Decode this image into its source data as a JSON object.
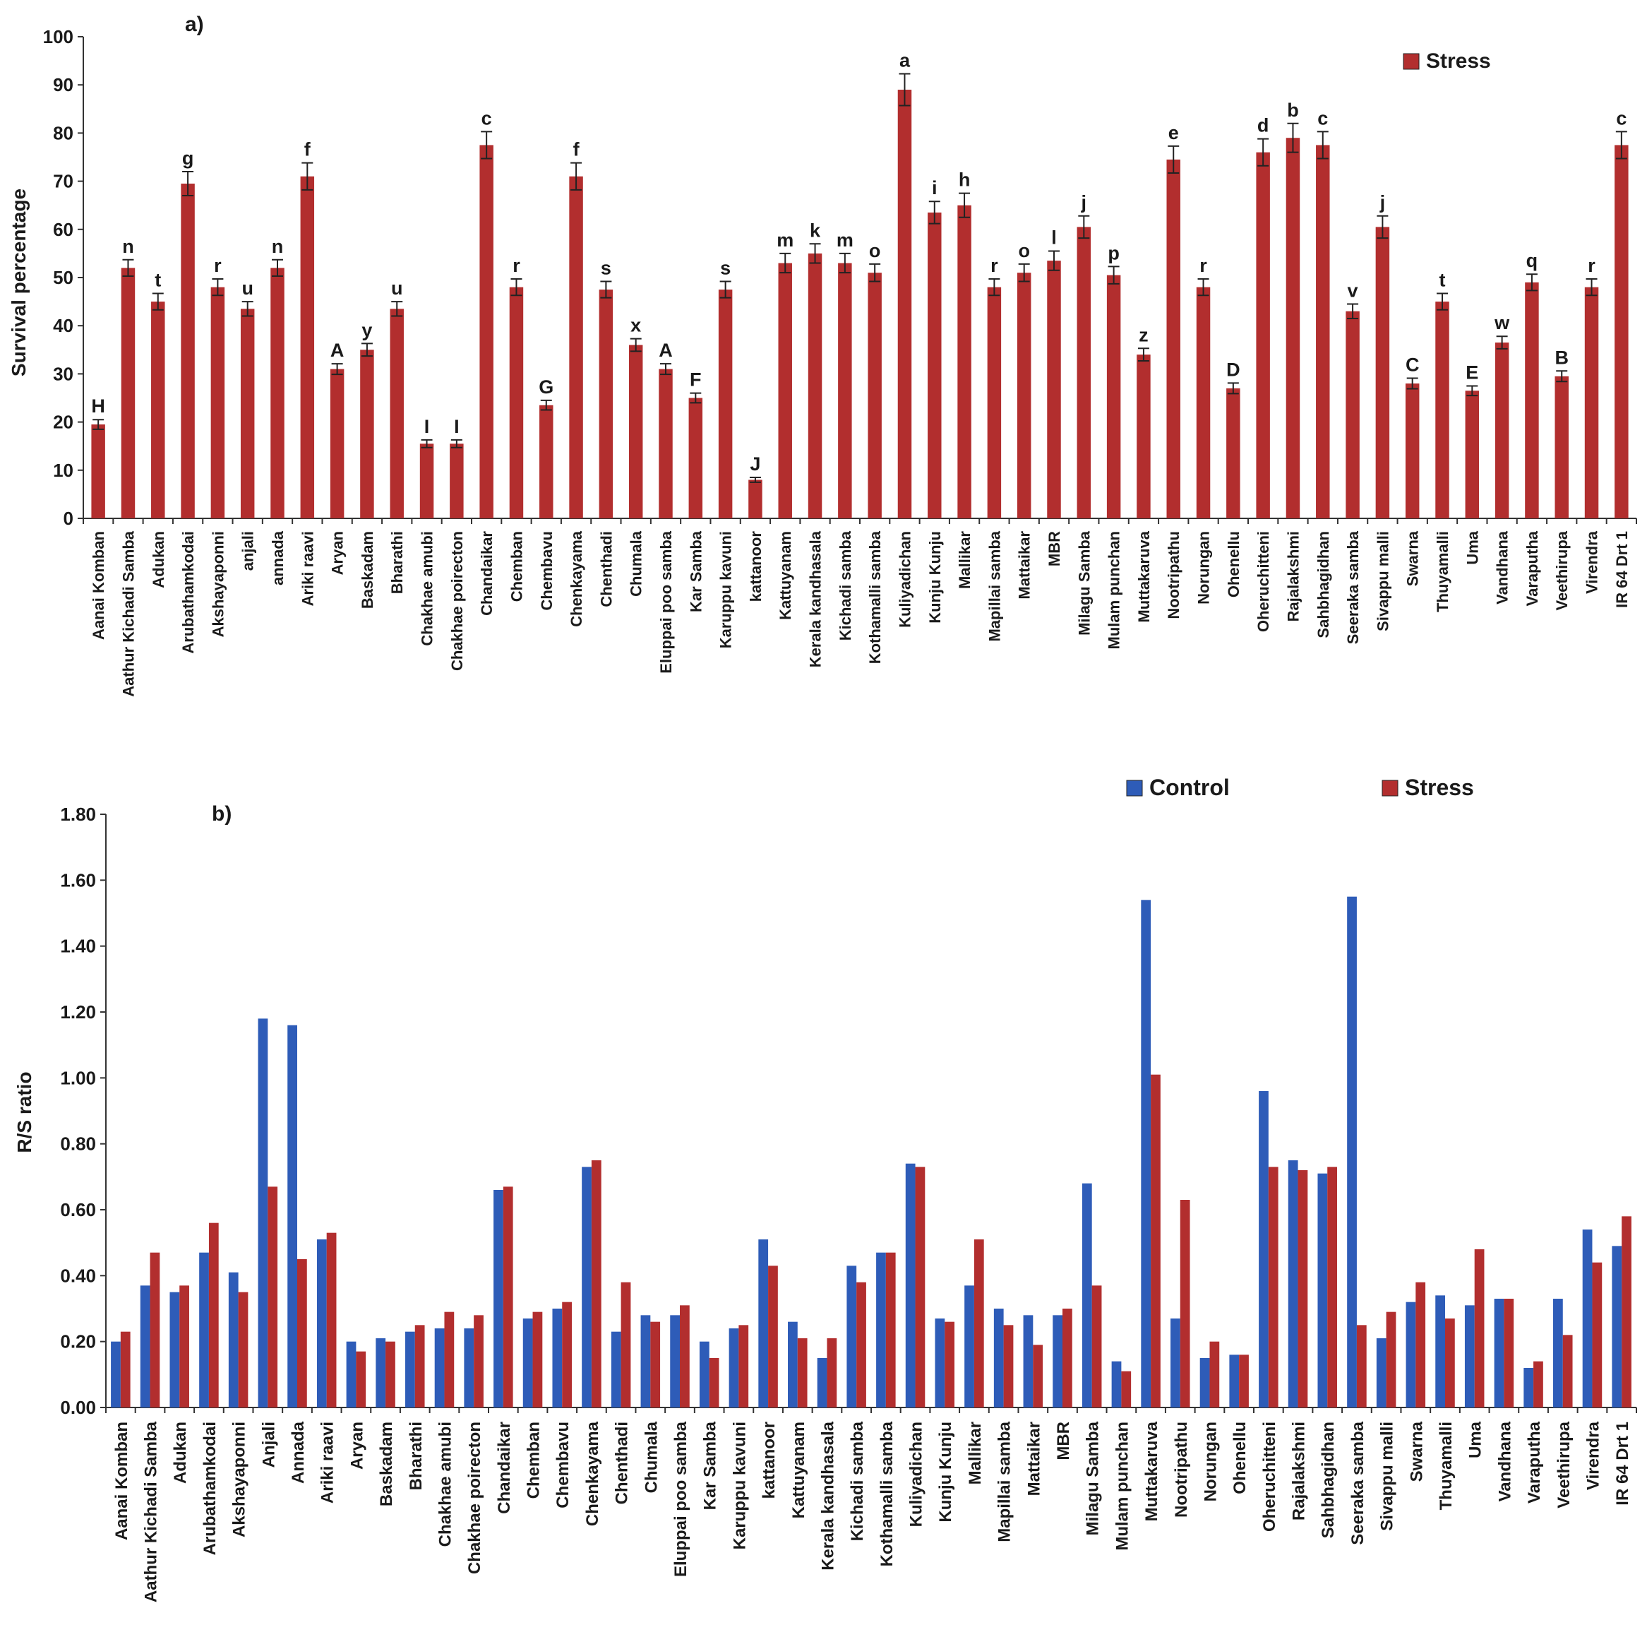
{
  "colors": {
    "stress": "#B22E2E",
    "control": "#2E5CB8",
    "axis": "#333333",
    "error": "#222222"
  },
  "chart_data": [
    {
      "type": "bar",
      "panel_label": "a)",
      "title": "",
      "xlabel": "",
      "ylabel": "Survival percentage",
      "ylim": [
        0,
        100
      ],
      "yticks": [
        "0",
        "10",
        "20",
        "30",
        "40",
        "50",
        "60",
        "70",
        "80",
        "90",
        "100"
      ],
      "legend": [
        "Stress"
      ],
      "legend_position": "top-right",
      "categories": [
        "Aanai Komban",
        "Aathur Kichadi Samba",
        "Adukan",
        "Arubathamkodai",
        "Akshayaponni",
        "anjali",
        "annada",
        "Ariki raavi",
        "Aryan",
        "Baskadam",
        "Bharathi",
        "Chakhae amubi",
        "Chakhae poirecton",
        "Chandaikar",
        "Chemban",
        "Chembavu",
        "Chenkayama",
        "Chenthadi",
        "Chumala",
        "Eluppai poo samba",
        "Kar Samba",
        "Karuppu kavuni",
        "kattanoor",
        "Kattuyanam",
        "Kerala kandhasala",
        "Kichadi samba",
        "Kothamalli samba",
        "Kuliyadichan",
        "Kunju Kunju",
        "Mallikar",
        "Mapillai samba",
        "Mattaikar",
        "MBR",
        "Milagu Samba",
        "Mulam punchan",
        "Muttakaruva",
        "Nootripathu",
        "Norungan",
        "Ohenellu",
        "Oheruchitteni",
        "Rajalakshmi",
        "Sahbhagidhan",
        "Seeraka samba",
        "Sivappu malli",
        "Swarna",
        "Thuyamalli",
        "Uma",
        "Vandhana",
        "Varaputha",
        "Veethirupa",
        "Virendra",
        "IR 64 Drt 1"
      ],
      "series": [
        {
          "name": "Stress",
          "values": [
            19.5,
            52,
            45,
            69.5,
            48,
            43.5,
            52,
            71,
            31,
            35,
            43.5,
            15.5,
            15.5,
            77.5,
            48,
            23.5,
            71,
            47.5,
            36,
            31,
            25,
            47.5,
            8,
            53,
            55,
            53,
            51,
            89,
            63.5,
            65,
            48,
            51,
            53.5,
            60.5,
            50.5,
            34,
            74.5,
            48,
            27,
            76,
            79,
            77.5,
            43,
            60.5,
            28,
            45,
            26.5,
            36.5,
            49,
            29.5,
            48,
            77.5
          ],
          "errors": [
            1.0,
            1.7,
            1.7,
            2.5,
            1.7,
            1.5,
            1.7,
            2.8,
            1.1,
            1.3,
            1.5,
            0.8,
            0.8,
            2.8,
            1.7,
            1.0,
            2.8,
            1.7,
            1.3,
            1.1,
            1.0,
            1.7,
            0.5,
            2.0,
            2.0,
            2.0,
            1.8,
            3.3,
            2.3,
            2.5,
            1.7,
            1.8,
            2.0,
            2.3,
            1.8,
            1.3,
            2.8,
            1.7,
            1.1,
            2.8,
            3.0,
            2.8,
            1.5,
            2.3,
            1.1,
            1.7,
            1.0,
            1.3,
            1.7,
            1.1,
            1.7,
            2.8
          ],
          "letters": [
            "H",
            "n",
            "t",
            "g",
            "r",
            "u",
            "n",
            "f",
            "A",
            "y",
            "u",
            "I",
            "I",
            "c",
            "r",
            "G",
            "f",
            "s",
            "x",
            "A",
            "F",
            "s",
            "J",
            "m",
            "k",
            "m",
            "o",
            "a",
            "i",
            "h",
            "r",
            "o",
            "l",
            "j",
            "p",
            "z",
            "e",
            "r",
            "D",
            "d",
            "b",
            "c",
            "v",
            "j",
            "C",
            "t",
            "E",
            "w",
            "q",
            "B",
            "r",
            "c"
          ]
        }
      ]
    },
    {
      "type": "bar",
      "panel_label": "b)",
      "title": "",
      "xlabel": "",
      "ylabel": "R/S ratio",
      "ylim": [
        0,
        1.8
      ],
      "yticks": [
        "0.00",
        "0.20",
        "0.40",
        "0.60",
        "0.80",
        "1.00",
        "1.20",
        "1.40",
        "1.60",
        "1.80"
      ],
      "legend": [
        "Control",
        "Stress"
      ],
      "legend_position": "top-right",
      "categories": [
        "Aanai Komban",
        "Aathur Kichadi Samba",
        "Adukan",
        "Arubathamkodai",
        "Akshayaponni",
        "Anjali",
        "Annada",
        "Ariki raavi",
        "Aryan",
        "Baskadam",
        "Bharathi",
        "Chakhae amubi",
        "Chakhae poirecton",
        "Chandaikar",
        "Chemban",
        "Chembavu",
        "Chenkayama",
        "Chenthadi",
        "Chumala",
        "Eluppai poo samba",
        "Kar Samba",
        "Karuppu kavuni",
        "kattanoor",
        "Kattuyanam",
        "Kerala kandhasala",
        "Kichadi samba",
        "Kothamalli samba",
        "Kuliyadichan",
        "Kunju Kunju",
        "Mallikar",
        "Mapillai samba",
        "Mattaikar",
        "MBR",
        "Milagu Samba",
        "Mulam punchan",
        "Muttakaruva",
        "Nootripathu",
        "Norungan",
        "Ohenellu",
        "Oheruchitteni",
        "Rajalakshmi",
        "Sahbhagidhan",
        "Seeraka samba",
        "Sivappu malli",
        "Swarna",
        "Thuyamalli",
        "Uma",
        "Vandhana",
        "Varaputha",
        "Veethirupa",
        "Virendra",
        "IR 64 Drt 1"
      ],
      "series": [
        {
          "name": "Control",
          "values": [
            0.2,
            0.37,
            0.35,
            0.47,
            0.41,
            1.18,
            1.16,
            0.51,
            0.2,
            0.21,
            0.23,
            0.24,
            0.24,
            0.66,
            0.27,
            0.3,
            0.73,
            0.23,
            0.28,
            0.28,
            0.2,
            0.24,
            0.51,
            0.26,
            0.15,
            0.43,
            0.47,
            0.74,
            0.27,
            0.37,
            0.3,
            0.28,
            0.28,
            0.68,
            0.14,
            1.54,
            0.27,
            0.15,
            0.16,
            0.96,
            0.75,
            0.71,
            1.55,
            0.21,
            0.32,
            0.34,
            0.31,
            0.33,
            0.12,
            0.33,
            0.54,
            0.49
          ]
        },
        {
          "name": "Stress",
          "values": [
            0.23,
            0.47,
            0.37,
            0.56,
            0.35,
            0.67,
            0.45,
            0.53,
            0.17,
            0.2,
            0.25,
            0.29,
            0.28,
            0.67,
            0.29,
            0.32,
            0.75,
            0.38,
            0.26,
            0.31,
            0.15,
            0.25,
            0.43,
            0.21,
            0.21,
            0.38,
            0.47,
            0.73,
            0.26,
            0.51,
            0.25,
            0.19,
            0.3,
            0.37,
            0.11,
            1.01,
            0.63,
            0.2,
            0.16,
            0.73,
            0.72,
            0.73,
            0.25,
            0.29,
            0.38,
            0.27,
            0.48,
            0.33,
            0.14,
            0.22,
            0.44,
            0.58
          ]
        }
      ]
    }
  ]
}
